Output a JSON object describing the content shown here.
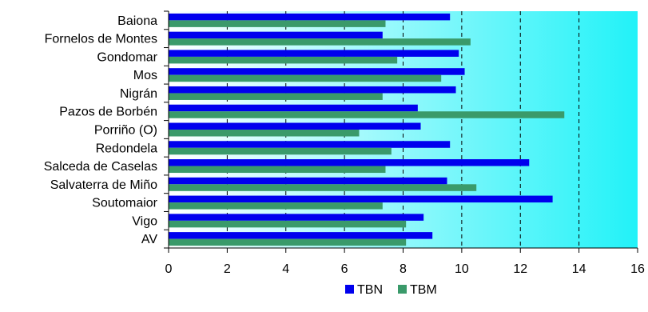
{
  "chart_data": {
    "type": "bar",
    "orientation": "horizontal",
    "categories": [
      "Baiona",
      "Fornelos de Montes",
      "Gondomar",
      "Mos",
      "Nigrán",
      "Pazos de Borbén",
      "Porriño (O)",
      "Redondela",
      "Salceda de Caselas",
      "Salvaterra de Miño",
      "Soutomaior",
      "Vigo",
      "AV"
    ],
    "series": [
      {
        "name": "TBN",
        "color": "#0000ee",
        "values": [
          9.6,
          7.3,
          9.9,
          10.1,
          9.8,
          8.5,
          8.6,
          9.6,
          12.3,
          9.5,
          13.1,
          8.7,
          9.0
        ]
      },
      {
        "name": "TBM",
        "color": "#3a9a6a",
        "values": [
          7.4,
          10.3,
          7.8,
          9.3,
          7.3,
          13.5,
          6.5,
          7.6,
          7.4,
          10.5,
          7.3,
          8.1,
          8.1
        ]
      }
    ],
    "xlim": [
      0,
      16
    ],
    "xticks": [
      "0",
      "2",
      "4",
      "6",
      "8",
      "10",
      "12",
      "14",
      "16"
    ],
    "grid": "vertical dashed lines at major ticks",
    "legend": "bottom-center",
    "background": "gradient white to cyan",
    "title": "",
    "xlabel": "",
    "ylabel": ""
  }
}
